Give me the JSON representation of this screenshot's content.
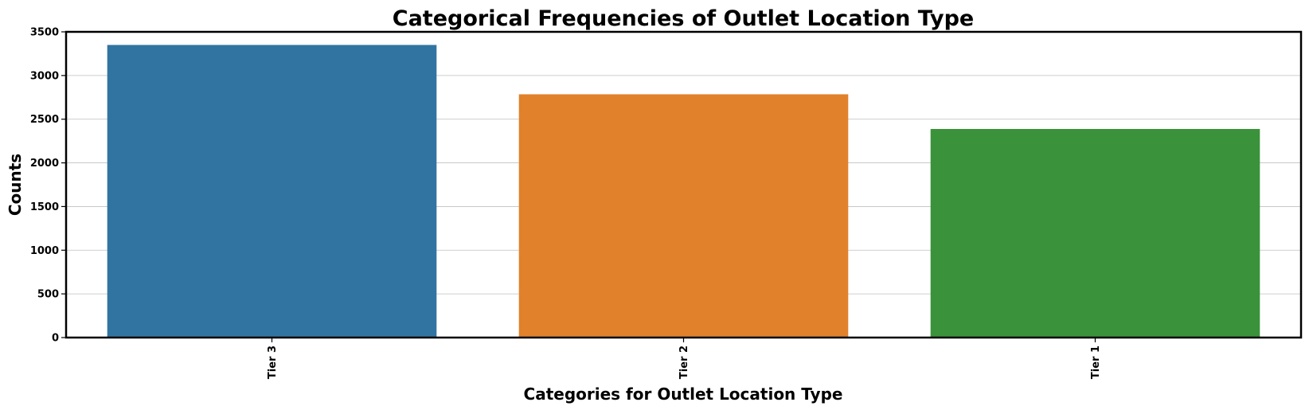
{
  "chart_data": {
    "type": "bar",
    "title": "Categorical Frequencies of Outlet Location Type",
    "xlabel": "Categories for Outlet Location Type",
    "ylabel": "Counts",
    "categories": [
      "Tier 3",
      "Tier 2",
      "Tier 1"
    ],
    "values": [
      3350,
      2785,
      2388
    ],
    "colors": [
      "#3274a1",
      "#e1812c",
      "#3a923a"
    ],
    "ylim": [
      0,
      3500
    ],
    "yticks": [
      0,
      500,
      1000,
      1500,
      2000,
      2500,
      3000,
      3500
    ],
    "grid": "horizontal",
    "xtick_rotation": "vertical"
  }
}
